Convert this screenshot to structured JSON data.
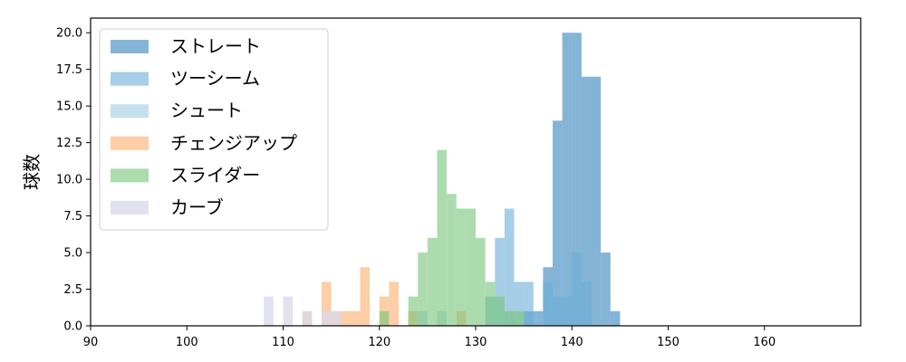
{
  "chart_data": {
    "type": "histogram",
    "xlabel": "",
    "ylabel": "球数",
    "xlim": [
      90,
      170
    ],
    "ylim": [
      0,
      21
    ],
    "bin_width": 1,
    "x_ticks": [
      90,
      100,
      110,
      120,
      130,
      140,
      150,
      160
    ],
    "y_ticks": [
      0.0,
      2.5,
      5.0,
      7.5,
      10.0,
      12.5,
      15.0,
      17.5,
      20.0
    ],
    "x_tick_labels": [
      "90",
      "100",
      "110",
      "120",
      "130",
      "140",
      "150",
      "160"
    ],
    "y_tick_labels": [
      "0.0",
      "2.5",
      "5.0",
      "7.5",
      "10.0",
      "12.5",
      "15.0",
      "17.5",
      "20.0"
    ],
    "grid": false,
    "legend_position": "upper left",
    "series": [
      {
        "name": "ストレート",
        "color": "#1f77b4",
        "opacity": 0.55,
        "bins": [
          [
            135,
            1
          ],
          [
            136,
            1
          ],
          [
            137,
            4
          ],
          [
            138,
            14
          ],
          [
            139,
            20
          ],
          [
            140,
            20
          ],
          [
            141,
            17
          ],
          [
            142,
            17
          ],
          [
            143,
            5
          ],
          [
            144,
            1
          ]
        ]
      },
      {
        "name": "ツーシーム",
        "color": "#6baed6",
        "opacity": 0.6,
        "bins": [
          [
            131,
            2
          ],
          [
            132,
            6
          ],
          [
            133,
            8
          ],
          [
            134,
            3
          ],
          [
            135,
            3
          ],
          [
            137,
            3
          ],
          [
            138,
            2
          ],
          [
            139,
            2
          ],
          [
            140,
            5
          ],
          [
            141,
            3
          ]
        ]
      },
      {
        "name": "シュート",
        "color": "#9ecae1",
        "opacity": 0.6,
        "bins": [
          [
            124,
            1
          ],
          [
            126,
            1
          ],
          [
            133,
            1
          ]
        ]
      },
      {
        "name": "チェンジアップ",
        "color": "#fdae6b",
        "opacity": 0.6,
        "bins": [
          [
            112,
            1
          ],
          [
            114,
            3
          ],
          [
            115,
            1
          ],
          [
            116,
            1
          ],
          [
            117,
            1
          ],
          [
            118,
            4
          ],
          [
            120,
            2
          ],
          [
            121,
            3
          ],
          [
            123,
            1
          ],
          [
            128,
            1
          ]
        ]
      },
      {
        "name": "スライダー",
        "color": "#74c476",
        "opacity": 0.6,
        "bins": [
          [
            120,
            1
          ],
          [
            123,
            2
          ],
          [
            124,
            5
          ],
          [
            125,
            6
          ],
          [
            126,
            12
          ],
          [
            127,
            9
          ],
          [
            128,
            8
          ],
          [
            129,
            8
          ],
          [
            130,
            6
          ],
          [
            131,
            3
          ],
          [
            132,
            2
          ],
          [
            133,
            1
          ],
          [
            134,
            1
          ]
        ]
      },
      {
        "name": "カーブ",
        "color": "#dadaeb",
        "opacity": 0.8,
        "bins": [
          [
            108,
            2
          ],
          [
            110,
            2
          ],
          [
            112,
            1
          ],
          [
            114,
            1
          ],
          [
            115,
            1
          ]
        ]
      }
    ]
  }
}
